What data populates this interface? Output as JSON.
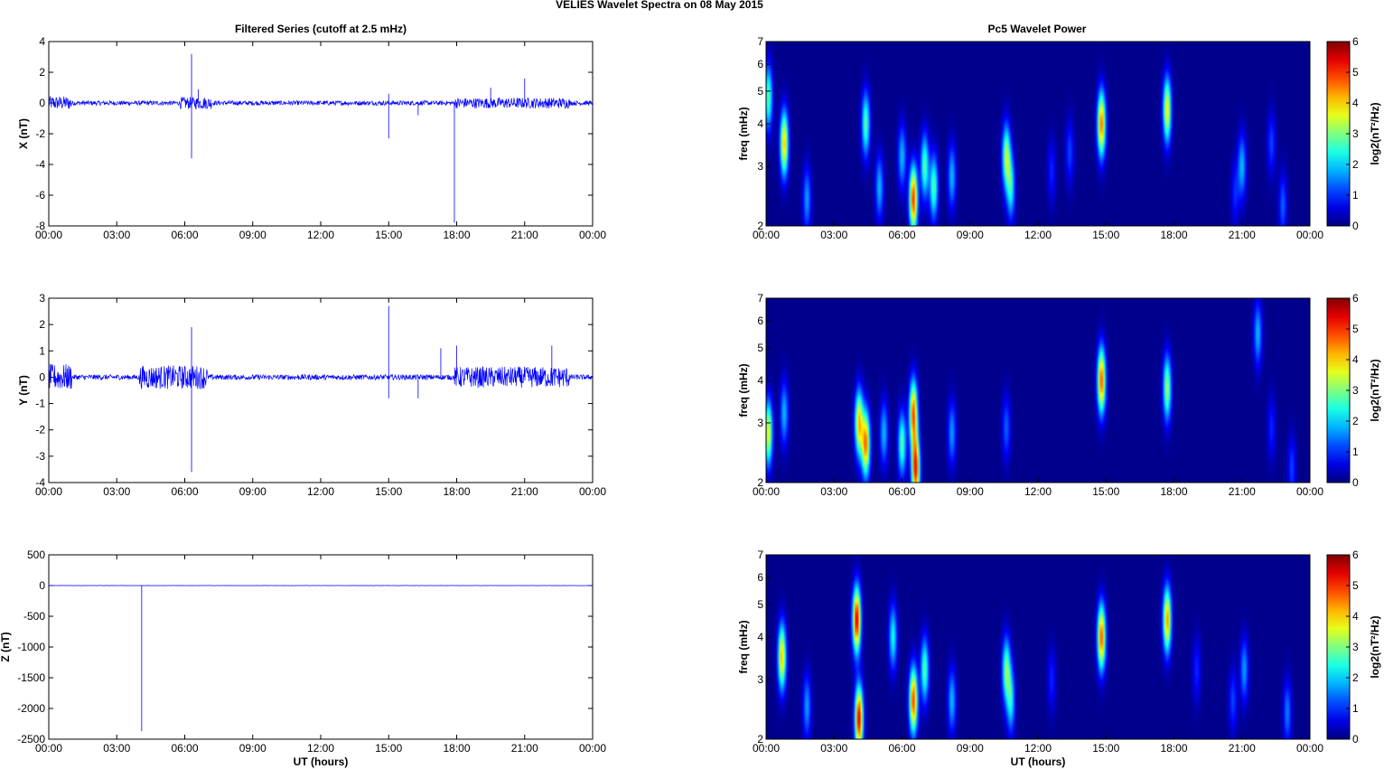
{
  "figure": {
    "title": "VELIES Wavelet Spectra on 08 May      2015",
    "left_title": "Filtered Series (cutoff at 2.5 mHz)",
    "right_title": "Pc5 Wavelet Power"
  },
  "chart_data": [
    {
      "type": "line",
      "panel": "X",
      "ylabel": "X (nT)",
      "xlabel": "",
      "xlim": [
        0,
        24
      ],
      "ylim": [
        -8,
        4
      ],
      "yticks": [
        -8,
        -6,
        -4,
        -2,
        0,
        2,
        4
      ],
      "xticklabels": [
        "00:00",
        "03:00",
        "06:00",
        "09:00",
        "12:00",
        "15:00",
        "18:00",
        "21:00",
        "00:00"
      ],
      "series_color": "#0000ff",
      "noise_amplitude": 0.15,
      "active_intervals": [
        [
          0.0,
          1.0,
          0.45
        ],
        [
          5.8,
          7.2,
          0.4
        ],
        [
          17.9,
          23.0,
          0.35
        ]
      ],
      "spikes": [
        [
          6.3,
          3.2
        ],
        [
          6.3,
          -3.6
        ],
        [
          15.0,
          0.6
        ],
        [
          15.0,
          -2.3
        ],
        [
          17.9,
          -7.8
        ],
        [
          6.6,
          0.9
        ],
        [
          16.3,
          -0.8
        ],
        [
          19.5,
          1.0
        ],
        [
          21.0,
          1.6
        ]
      ]
    },
    {
      "type": "line",
      "panel": "Y",
      "ylabel": "Y (nT)",
      "xlabel": "",
      "xlim": [
        0,
        24
      ],
      "ylim": [
        -4,
        3
      ],
      "yticks": [
        -4,
        -3,
        -2,
        -1,
        0,
        1,
        2,
        3
      ],
      "xticklabels": [
        "00:00",
        "03:00",
        "06:00",
        "09:00",
        "12:00",
        "15:00",
        "18:00",
        "21:00",
        "00:00"
      ],
      "series_color": "#0000ff",
      "noise_amplitude": 0.1,
      "active_intervals": [
        [
          0.0,
          1.0,
          0.5
        ],
        [
          4.0,
          7.0,
          0.45
        ],
        [
          17.9,
          23.0,
          0.4
        ]
      ],
      "spikes": [
        [
          6.3,
          1.9
        ],
        [
          6.3,
          -3.6
        ],
        [
          15.0,
          2.7
        ],
        [
          15.0,
          -0.8
        ],
        [
          16.3,
          -0.8
        ],
        [
          17.3,
          1.1
        ],
        [
          18.0,
          1.2
        ],
        [
          22.2,
          1.2
        ]
      ]
    },
    {
      "type": "line",
      "panel": "Z",
      "ylabel": "Z (nT)",
      "xlabel": "UT (hours)",
      "xlim": [
        0,
        24
      ],
      "ylim": [
        -2500,
        500
      ],
      "yticks": [
        -2500,
        -2000,
        -1500,
        -1000,
        -500,
        0,
        500
      ],
      "xticklabels": [
        "00:00",
        "03:00",
        "06:00",
        "09:00",
        "12:00",
        "15:00",
        "18:00",
        "21:00",
        "00:00"
      ],
      "series_color": "#0000ff",
      "noise_amplitude": 2,
      "active_intervals": [],
      "spikes": [
        [
          4.1,
          -2370
        ]
      ]
    },
    {
      "type": "heatmap",
      "panel": "X",
      "ylabel": "freq (mHz)",
      "xlabel": "",
      "xlim": [
        0,
        24
      ],
      "ylim_mHz": [
        2,
        7
      ],
      "y_scale": "log",
      "yticks": [
        2,
        3,
        4,
        5,
        6,
        7
      ],
      "xticklabels": [
        "00:00",
        "03:00",
        "06:00",
        "09:00",
        "12:00",
        "15:00",
        "18:00",
        "21:00",
        "00:00"
      ],
      "colorbar_label": "log2(nT²/Hz)",
      "colorbar_ticks": [
        0,
        1,
        2,
        3,
        4,
        5,
        6
      ],
      "colormap": "jet",
      "blobs": [
        [
          0.1,
          4.8,
          3.0
        ],
        [
          0.8,
          3.5,
          4.5
        ],
        [
          1.8,
          2.4,
          1.8
        ],
        [
          4.4,
          4.0,
          3.0
        ],
        [
          5.0,
          2.6,
          2.0
        ],
        [
          6.0,
          3.2,
          2.0
        ],
        [
          6.5,
          2.4,
          5.5
        ],
        [
          7.0,
          3.0,
          3.0
        ],
        [
          7.4,
          2.6,
          3.0
        ],
        [
          8.2,
          2.8,
          2.0
        ],
        [
          10.6,
          3.2,
          3.5
        ],
        [
          10.8,
          2.6,
          2.5
        ],
        [
          12.6,
          2.9,
          1.0
        ],
        [
          13.4,
          3.3,
          1.2
        ],
        [
          14.8,
          4.0,
          5.0
        ],
        [
          17.7,
          4.4,
          4.2
        ],
        [
          20.7,
          2.5,
          1.0
        ],
        [
          21.0,
          3.0,
          2.0
        ],
        [
          22.3,
          3.5,
          1.2
        ],
        [
          22.8,
          2.3,
          1.4
        ]
      ]
    },
    {
      "type": "heatmap",
      "panel": "Y",
      "ylabel": "freq (mHz)",
      "xlabel": "",
      "xlim": [
        0,
        24
      ],
      "ylim_mHz": [
        2,
        7
      ],
      "y_scale": "log",
      "yticks": [
        2,
        3,
        4,
        5,
        6,
        7
      ],
      "xticklabels": [
        "00:00",
        "03:00",
        "06:00",
        "09:00",
        "12:00",
        "15:00",
        "18:00",
        "21:00",
        "00:00"
      ],
      "colorbar_label": "log2(nT²/Hz)",
      "colorbar_ticks": [
        0,
        1,
        2,
        3,
        4,
        5,
        6
      ],
      "colormap": "jet",
      "blobs": [
        [
          0.1,
          2.8,
          4.0
        ],
        [
          0.8,
          3.2,
          2.0
        ],
        [
          4.1,
          3.0,
          4.5
        ],
        [
          4.4,
          2.6,
          5.0
        ],
        [
          5.2,
          2.8,
          2.0
        ],
        [
          6.0,
          2.6,
          3.0
        ],
        [
          6.5,
          3.2,
          5.2
        ],
        [
          6.6,
          2.2,
          5.8
        ],
        [
          8.2,
          2.8,
          1.8
        ],
        [
          10.6,
          2.9,
          1.4
        ],
        [
          14.8,
          4.0,
          5.2
        ],
        [
          17.7,
          3.8,
          3.5
        ],
        [
          21.7,
          5.5,
          2.0
        ],
        [
          22.3,
          2.9,
          1.0
        ],
        [
          23.2,
          2.2,
          1.2
        ]
      ]
    },
    {
      "type": "heatmap",
      "panel": "Z",
      "ylabel": "freq (mHz)",
      "xlabel": "UT (hours)",
      "xlim": [
        0,
        24
      ],
      "ylim_mHz": [
        2,
        7
      ],
      "y_scale": "log",
      "yticks": [
        2,
        3,
        4,
        5,
        6,
        7
      ],
      "xticklabels": [
        "00:00",
        "03:00",
        "06:00",
        "09:00",
        "12:00",
        "15:00",
        "18:00",
        "21:00",
        "00:00"
      ],
      "colorbar_label": "log2(nT²/Hz)",
      "colorbar_ticks": [
        0,
        1,
        2,
        3,
        4,
        5,
        6
      ],
      "colormap": "jet",
      "blobs": [
        [
          0.7,
          3.5,
          4.5
        ],
        [
          1.8,
          2.5,
          1.8
        ],
        [
          4.0,
          4.5,
          6.0
        ],
        [
          4.1,
          2.3,
          6.0
        ],
        [
          5.6,
          4.0,
          2.5
        ],
        [
          6.5,
          2.6,
          5.4
        ],
        [
          7.0,
          3.2,
          3.0
        ],
        [
          8.2,
          2.6,
          2.0
        ],
        [
          10.6,
          3.2,
          3.2
        ],
        [
          10.8,
          2.6,
          2.4
        ],
        [
          12.6,
          3.0,
          1.0
        ],
        [
          14.8,
          4.0,
          5.2
        ],
        [
          17.7,
          4.5,
          4.8
        ],
        [
          19.0,
          3.2,
          1.0
        ],
        [
          20.6,
          2.6,
          1.2
        ],
        [
          21.1,
          3.2,
          1.8
        ],
        [
          23.0,
          2.4,
          1.6
        ]
      ]
    }
  ]
}
